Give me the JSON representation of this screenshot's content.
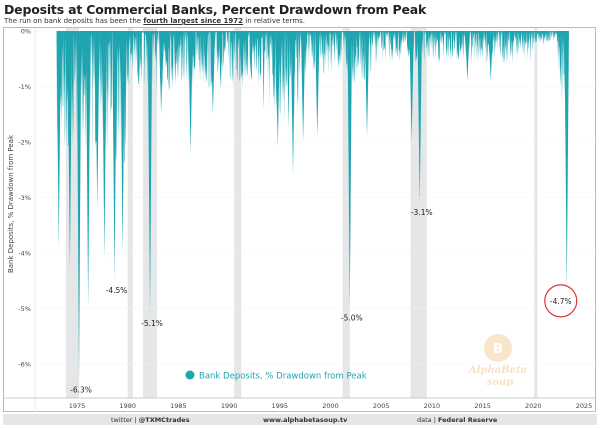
{
  "header": {
    "title": "Deposits at Commercial Banks, Percent Drawdown from Peak",
    "subtitle_pre": "The run on bank deposits has been the ",
    "subtitle_bold": "fourth largest since 1972",
    "subtitle_post": " in relative terms."
  },
  "footer": {
    "twitter_label": "twitter | ",
    "twitter_handle": "@TXMCtrades",
    "website": "www.alphabetasoup.tv",
    "data_label": "data | ",
    "data_source": "Federal Reserve"
  },
  "watermark": "Alpha Beta Soup",
  "chart_data": {
    "type": "area",
    "title": "Deposits at Commercial Banks, Percent Drawdown from Peak",
    "ylabel": "Bank Deposits, % Drawdown from Peak",
    "xlabel": "",
    "xlim": [
      1971.3,
      2025.5
    ],
    "ylim": [
      -6.6,
      0
    ],
    "x_ticks": [
      1975,
      1980,
      1985,
      1990,
      1995,
      2000,
      2005,
      2010,
      2015,
      2020,
      2025
    ],
    "y_ticks": [
      0,
      -1,
      -2,
      -3,
      -4,
      -5,
      -6
    ],
    "y_tick_labels": [
      "0%",
      "-1%",
      "-2%",
      "-3%",
      "-4%",
      "-5%",
      "-6%"
    ],
    "legend": {
      "label": "Bank Deposits, % Drawdown from Peak",
      "placement": "bottom-left"
    },
    "color": "#1fa5b0",
    "grid": true,
    "recessions": [
      [
        1973.9,
        1975.2
      ],
      [
        1980.0,
        1980.5
      ],
      [
        1981.5,
        1982.9
      ],
      [
        1990.5,
        1991.2
      ],
      [
        2001.2,
        2001.9
      ],
      [
        2007.9,
        2009.5
      ],
      [
        2020.1,
        2020.4
      ]
    ],
    "annotations": [
      {
        "x": 1975.2,
        "y": -6.3,
        "label": "-6.3%"
      },
      {
        "x": 1978.7,
        "y": -4.5,
        "label": "-4.5%"
      },
      {
        "x": 1982.2,
        "y": -5.1,
        "label": "-5.1%"
      },
      {
        "x": 2001.9,
        "y": -5.0,
        "label": "-5.0%"
      },
      {
        "x": 2008.8,
        "y": -3.1,
        "label": "-3.1%"
      },
      {
        "x": 2023.3,
        "y": -4.7,
        "label": "-4.7%",
        "highlight": true
      }
    ],
    "other_spikes": [
      [
        1973.2,
        -3.9
      ],
      [
        1974.3,
        -4.3
      ],
      [
        1976.1,
        -5.0
      ],
      [
        1977.0,
        -3.2
      ],
      [
        1977.7,
        -4.1
      ],
      [
        1979.5,
        -4.0
      ],
      [
        1983.3,
        -1.5
      ],
      [
        1986.2,
        -2.2
      ],
      [
        1988.4,
        -1.5
      ],
      [
        1994.8,
        -2.1
      ],
      [
        1996.3,
        -2.6
      ],
      [
        1997.3,
        -2.0
      ],
      [
        1998.7,
        -1.9
      ],
      [
        2003.6,
        -1.9
      ],
      [
        2008.0,
        -2.0
      ],
      [
        2013.5,
        -0.9
      ],
      [
        2015.8,
        -0.9
      ]
    ],
    "series_end": 2023.3
  }
}
